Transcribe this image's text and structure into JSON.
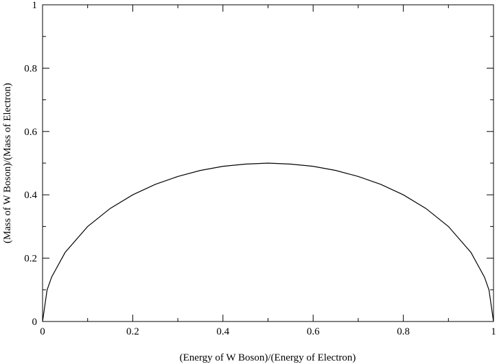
{
  "chart_data": {
    "type": "line",
    "xlabel": "(Energy of W Boson)/(Energy of Electron)",
    "ylabel": "(Mass of W Boson)/(Mass of Electron)",
    "xlim": [
      0,
      1
    ],
    "ylim": [
      0,
      1
    ],
    "xticks": [
      "0",
      "0.2",
      "0.4",
      "0.6",
      "0.8",
      "1"
    ],
    "yticks": [
      "0",
      "0.2",
      "0.4",
      "0.6",
      "0.8",
      "1"
    ],
    "xtick_values": [
      0,
      0.2,
      0.4,
      0.6,
      0.8,
      1
    ],
    "ytick_values": [
      0,
      0.2,
      0.4,
      0.6,
      0.8,
      1
    ],
    "minor_step": 0.1,
    "grid": false,
    "series": [
      {
        "color": "#000000",
        "x": [
          0,
          0.01,
          0.02,
          0.05,
          0.1,
          0.15,
          0.2,
          0.25,
          0.3,
          0.35,
          0.4,
          0.45,
          0.5,
          0.55,
          0.6,
          0.65,
          0.7,
          0.75,
          0.8,
          0.85,
          0.9,
          0.95,
          0.98,
          0.99,
          1
        ],
        "y": [
          0,
          0.0995,
          0.14,
          0.218,
          0.3,
          0.357,
          0.4,
          0.433,
          0.458,
          0.477,
          0.49,
          0.497,
          0.5,
          0.497,
          0.49,
          0.477,
          0.458,
          0.433,
          0.4,
          0.357,
          0.3,
          0.218,
          0.14,
          0.0995,
          0
        ]
      }
    ]
  }
}
